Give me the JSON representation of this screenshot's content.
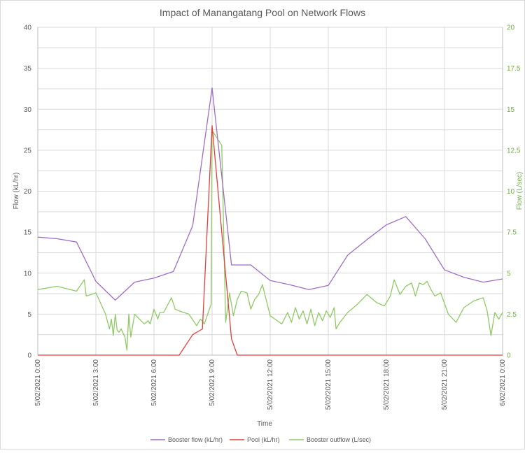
{
  "chart_data": {
    "type": "line",
    "title": "Impact of Manangatang Pool on Network Flows",
    "xlabel": "Time",
    "ylabel_left": "Flow (kL/hr)",
    "ylabel_right": "Flow (L/sec)",
    "ylim_left": [
      0,
      40
    ],
    "ylim_right": [
      0,
      20
    ],
    "xlim_hours": [
      0,
      24
    ],
    "grid": true,
    "legend_position": "bottom",
    "left_ticks": [
      "0",
      "5",
      "10",
      "15",
      "20",
      "25",
      "30",
      "35",
      "40"
    ],
    "right_ticks": [
      "0",
      "2.5",
      "5",
      "7.5",
      "10",
      "12.5",
      "15",
      "17.5",
      "20"
    ],
    "x_ticks": [
      "5/02/2021 0:00",
      "5/02/2021 3:00",
      "5/02/2021 6:00",
      "5/02/2021 9:00",
      "5/02/2021 12:00",
      "5/02/2021 15:00",
      "5/02/2021 18:00",
      "5/02/2021 21:00",
      "6/02/2021 0:00"
    ],
    "series": [
      {
        "name": "Booster flow (kL/hr)",
        "color": "#9e6ec4",
        "axis": "left",
        "x": [
          0,
          1,
          2,
          3,
          4,
          5,
          6,
          7,
          8,
          9,
          10,
          11,
          12,
          13,
          14,
          15,
          16,
          17,
          18,
          19,
          20,
          21,
          22,
          23,
          24
        ],
        "y": [
          14.4,
          14.2,
          13.8,
          9.0,
          6.7,
          8.9,
          9.4,
          10.2,
          15.8,
          32.6,
          11.0,
          11.0,
          9.1,
          8.6,
          8.0,
          8.5,
          12.2,
          14.1,
          15.9,
          16.9,
          14.2,
          10.4,
          9.5,
          8.9,
          9.3
        ]
      },
      {
        "name": "Pool (kL/hr)",
        "color": "#e0413c",
        "axis": "left",
        "x": [
          0,
          1,
          2,
          3,
          4,
          5,
          6,
          7,
          7.3,
          8.0,
          8.5,
          9.0,
          9.5,
          10.0,
          10.3,
          11,
          12,
          13,
          14,
          15,
          16,
          17,
          18,
          19,
          20,
          21,
          22,
          23,
          24
        ],
        "y": [
          0,
          0,
          0,
          0,
          0,
          0,
          0,
          0,
          0,
          2.5,
          3.2,
          28.0,
          15.0,
          2.0,
          0,
          0,
          0,
          0,
          0,
          0,
          0,
          0,
          0,
          0,
          0,
          0,
          0,
          0,
          0
        ]
      },
      {
        "name": "Booster outflow (L/sec)",
        "color": "#8fc965",
        "axis": "right",
        "x": [
          0,
          1,
          2,
          2.4,
          2.5,
          3.0,
          3.5,
          3.7,
          3.8,
          3.9,
          4.0,
          4.1,
          4.2,
          4.3,
          4.5,
          4.6,
          4.7,
          4.8,
          5.0,
          5.5,
          5.7,
          5.8,
          6.0,
          6.2,
          6.3,
          6.5,
          6.9,
          7.1,
          7.3,
          7.8,
          8.2,
          8.4,
          8.6,
          8.8,
          8.95,
          9.0,
          9.5,
          9.7,
          9.9,
          10.1,
          10.3,
          10.5,
          10.8,
          11.0,
          11.2,
          11.4,
          11.6,
          12.0,
          12.6,
          12.9,
          13.1,
          13.3,
          13.5,
          13.7,
          13.9,
          14.1,
          14.3,
          14.5,
          14.7,
          14.9,
          15.1,
          15.3,
          15.4,
          15.6,
          16.0,
          16.5,
          17.0,
          17.5,
          17.9,
          18.2,
          18.4,
          18.7,
          19.0,
          19.3,
          19.5,
          19.7,
          19.9,
          20.1,
          20.3,
          20.5,
          20.8,
          21.2,
          21.6,
          22.0,
          22.5,
          23.0,
          23.2,
          23.4,
          23.6,
          23.8,
          24.0
        ],
        "y": [
          4.0,
          4.2,
          3.9,
          4.6,
          3.6,
          3.8,
          2.5,
          1.6,
          2.2,
          1.2,
          2.5,
          1.5,
          1.4,
          1.6,
          1.1,
          0.3,
          2.5,
          1.1,
          2.5,
          1.9,
          2.1,
          1.9,
          2.8,
          2.2,
          2.6,
          2.6,
          3.5,
          2.8,
          2.7,
          2.5,
          1.8,
          2.2,
          1.9,
          2.6,
          3.1,
          13.7,
          12.8,
          2.0,
          3.8,
          2.4,
          3.4,
          3.9,
          3.8,
          2.8,
          3.4,
          3.7,
          4.3,
          2.4,
          1.9,
          2.6,
          2.0,
          2.9,
          2.2,
          2.7,
          1.9,
          2.8,
          1.8,
          2.6,
          2.1,
          2.7,
          2.3,
          2.9,
          1.6,
          2.0,
          2.6,
          3.1,
          3.7,
          3.2,
          3.0,
          3.6,
          4.6,
          3.7,
          4.2,
          4.4,
          3.6,
          4.4,
          4.3,
          4.5,
          4.0,
          3.6,
          3.8,
          2.5,
          2.0,
          2.9,
          3.3,
          3.5,
          2.7,
          1.2,
          2.6,
          2.2,
          2.6
        ]
      }
    ]
  }
}
